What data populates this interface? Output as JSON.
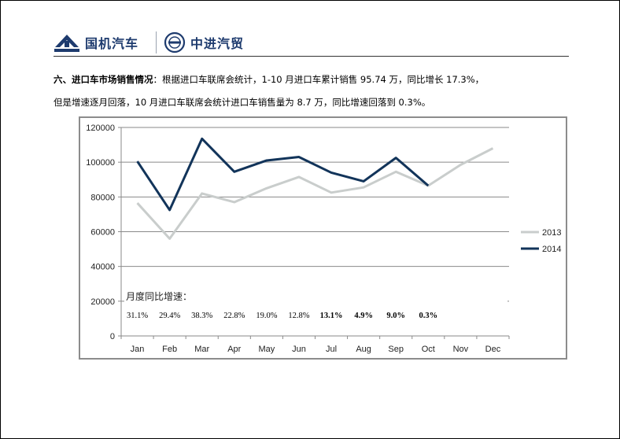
{
  "header": {
    "brand_left": "国机汽车",
    "brand_right": "中进汽贸"
  },
  "paragraph": {
    "heading": "六、进口车市场销售情况",
    "line1_rest": "：根据进口车联席会统计，1-10 月进口车累计销售 95.74 万，同比增长 17.3%，",
    "line2": "但是增速逐月回落，10 月进口车联席会统计进口车销售量为 8.7 万，同比增速回落到 0.3%。"
  },
  "chart_data": {
    "type": "line",
    "categories": [
      "Jan",
      "Feb",
      "Mar",
      "Apr",
      "May",
      "Jun",
      "Jul",
      "Aug",
      "Sep",
      "Oct",
      "Nov",
      "Dec"
    ],
    "y_ticks": [
      "0",
      "20000",
      "40000",
      "60000",
      "80000",
      "100000",
      "120000"
    ],
    "ylim": [
      0,
      120000
    ],
    "grid": true,
    "legend_position": "right",
    "series": [
      {
        "name": "2013",
        "color": "#c9cdcc",
        "values": [
          76500,
          56000,
          82000,
          77000,
          85000,
          91500,
          82500,
          85500,
          94500,
          86500,
          98500,
          108000
        ]
      },
      {
        "name": "2014",
        "color": "#12345a",
        "values": [
          100500,
          72500,
          113500,
          94500,
          101000,
          103000,
          94000,
          89000,
          102500,
          86500,
          null,
          null
        ]
      }
    ],
    "annotation_title": "月度同比增速：",
    "growth_rates": [
      {
        "label": "31.1%",
        "color": "#000000",
        "bold": false
      },
      {
        "label": "29.4%",
        "color": "#000000",
        "bold": false
      },
      {
        "label": "38.3%",
        "color": "#000000",
        "bold": false
      },
      {
        "label": "22.8%",
        "color": "#000000",
        "bold": false
      },
      {
        "label": "19.0%",
        "color": "#000000",
        "bold": false
      },
      {
        "label": "12.8%",
        "color": "#000000",
        "bold": false
      },
      {
        "label": "13.1%",
        "color": "#000000",
        "bold": true
      },
      {
        "label": "4.9%",
        "color": "#e8201a",
        "bold": true
      },
      {
        "label": "9.0%",
        "color": "#e8201a",
        "bold": true
      },
      {
        "label": "0.3%",
        "color": "#e8201a",
        "bold": true
      }
    ]
  }
}
